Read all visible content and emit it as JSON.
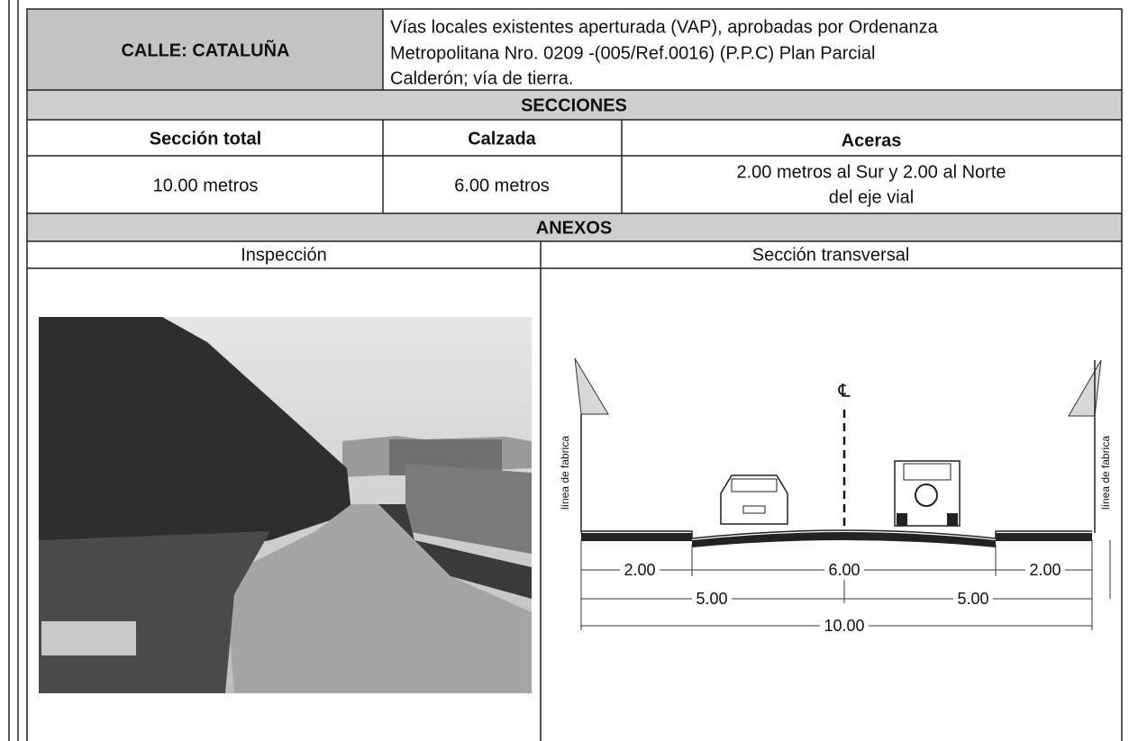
{
  "header": {
    "title": "CALLE: CATALUÑA",
    "description": [
      "Vías locales existentes aperturada (VAP), aprobadas por Ordenanza",
      "Metropolitana Nro. 0209 -(005/Ref.0016) (P.P.C) Plan Parcial",
      "Calderón; vía de tierra."
    ]
  },
  "sections": {
    "title": "SECCIONES",
    "headers": [
      "Sección total",
      "Calzada",
      "Aceras"
    ],
    "values": [
      "10.00 metros",
      "6.00 metros",
      [
        "2.00 metros al Sur y 2.00 al Norte",
        "del eje vial"
      ]
    ]
  },
  "annexes": {
    "title": "ANEXOS",
    "headers": [
      "Inspección",
      "Sección transversal"
    ]
  },
  "cross_section": {
    "centerline": "℄",
    "left_label": "línea de fabrica",
    "right_label": "línea de fabrica",
    "dimensions": {
      "left_sidewalk": "2.00",
      "roadway": "6.00",
      "right_sidewalk": "2.00",
      "left_half": "5.00",
      "right_half": "5.00",
      "total": "10.00"
    }
  }
}
